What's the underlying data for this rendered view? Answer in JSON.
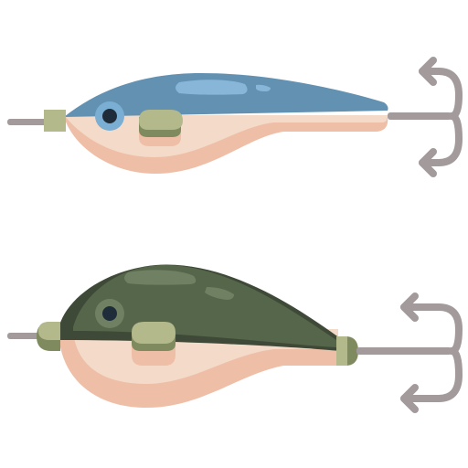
{
  "illustration": {
    "subject": "fishing-lures",
    "lure_count": 2
  },
  "lures": [
    {
      "name": "blue-minnow-lure",
      "colors": {
        "back": "#6291b2",
        "back_highlight": "#87b6d8",
        "belly": "#f4dac8",
        "belly_shadow": "#eebea7",
        "eye_ring": "#7aaed3",
        "eye_pupil": "#1f2d3a",
        "fitting": "#b4b98b",
        "fitting_shadow": "#7f8a5e",
        "wire": "#a29a9b"
      }
    },
    {
      "name": "green-crankbait-lure",
      "colors": {
        "back": "#56664a",
        "back_shadow": "#3e4a37",
        "back_highlight": "#6f8063",
        "belly": "#f4dac8",
        "belly_shadow": "#eebea7",
        "eye_ring": "#6f8063",
        "eye_pupil": "#1f2d3a",
        "fitting": "#b4b98b",
        "fitting_shadow": "#7f8a5e",
        "wire": "#a29a9b"
      }
    }
  ]
}
